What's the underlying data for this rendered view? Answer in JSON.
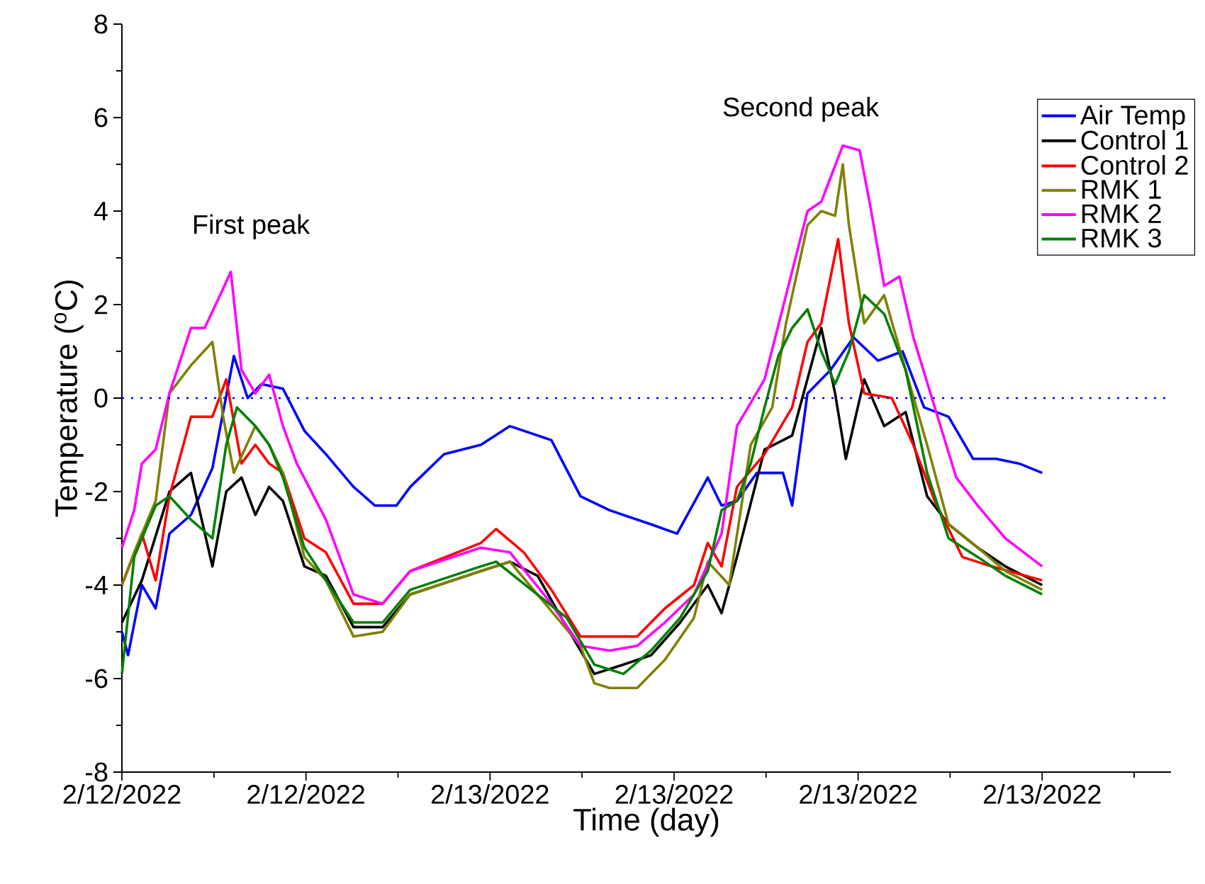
{
  "chart_data": {
    "type": "line",
    "xlabel": "Time (day)",
    "ylabel": "Temperature ($^{o}$C)",
    "xlim": [
      "2022-02-12T12:00",
      "2022-02-13T22:12"
    ],
    "ylim": [
      -8,
      8
    ],
    "xticks": [
      {
        "value": "2022-02-12T12:00",
        "label": "2/12/2022"
      },
      {
        "value": "2022-02-12T15:00",
        "label": null
      },
      {
        "value": "2022-02-12T18:00",
        "label": "2/12/2022"
      },
      {
        "value": "2022-02-12T21:00",
        "label": null
      },
      {
        "value": "2022-02-13T00:00",
        "label": "2/13/2022"
      },
      {
        "value": "2022-02-13T03:00",
        "label": null
      },
      {
        "value": "2022-02-13T06:00",
        "label": "2/13/2022"
      },
      {
        "value": "2022-02-13T09:00",
        "label": null
      },
      {
        "value": "2022-02-13T12:00",
        "label": "2/13/2022"
      },
      {
        "value": "2022-02-13T15:00",
        "label": null
      },
      {
        "value": "2022-02-13T18:00",
        "label": "2/13/2022"
      },
      {
        "value": "2022-02-13T21:00",
        "label": null
      }
    ],
    "yticks": [
      -8,
      {
        "value": -7,
        "label": null
      },
      -6,
      {
        "value": -5,
        "label": null
      },
      -4,
      {
        "value": -3,
        "label": null
      },
      -2,
      {
        "value": -1,
        "label": null
      },
      0,
      {
        "value": 1,
        "label": null
      },
      2,
      {
        "value": 3,
        "label": null
      },
      4,
      {
        "value": 5,
        "label": null
      },
      6,
      {
        "value": 7,
        "label": null
      },
      8
    ],
    "legend": "top right",
    "marker": "none",
    "line_style": "solid",
    "ref_lines": [
      {
        "axis": "y",
        "value": 0,
        "color": "#0000ff",
        "line_style": "dotted"
      }
    ],
    "annotations": [
      "First peak",
      "Second peak"
    ],
    "series": [
      {
        "name": "Air Temp",
        "color": "#0000ff",
        "x": [
          "2022-02-12T12:00",
          "2022-02-12T12:12",
          "2022-02-12T12:39",
          "2022-02-12T13:06",
          "2022-02-12T13:33",
          "2022-02-12T14:15",
          "2022-02-12T14:57",
          "2022-02-12T15:39",
          "2022-02-12T16:06",
          "2022-02-12T16:33",
          "2022-02-12T17:15",
          "2022-02-12T17:57",
          "2022-02-12T18:39",
          "2022-02-12T19:33",
          "2022-02-12T20:15",
          "2022-02-12T20:57",
          "2022-02-12T21:24",
          "2022-02-12T22:30",
          "2022-02-12T23:42",
          "2022-02-13T00:39",
          "2022-02-13T02:00",
          "2022-02-13T02:57",
          "2022-02-13T03:54",
          "2022-02-13T05:15",
          "2022-02-13T06:06",
          "2022-02-13T07:06",
          "2022-02-13T07:33",
          "2022-02-13T08:03",
          "2022-02-13T08:42",
          "2022-02-13T09:33",
          "2022-02-13T09:51",
          "2022-02-13T10:21",
          "2022-02-13T11:06",
          "2022-02-13T11:51",
          "2022-02-13T12:39",
          "2022-02-13T13:27",
          "2022-02-13T14:09",
          "2022-02-13T14:57",
          "2022-02-13T15:45",
          "2022-02-13T16:30",
          "2022-02-13T17:15",
          "2022-02-13T18:00"
        ],
        "values": [
          -5.0,
          -5.5,
          -4.0,
          -4.5,
          -2.9,
          -2.5,
          -1.5,
          0.9,
          0.0,
          0.3,
          0.2,
          -0.7,
          -1.2,
          -1.9,
          -2.3,
          -2.3,
          -1.9,
          -1.2,
          -1.0,
          -0.6,
          -0.9,
          -2.1,
          -2.4,
          -2.7,
          -2.9,
          -1.7,
          -2.3,
          -2.2,
          -1.6,
          -1.6,
          -2.3,
          0.1,
          0.6,
          1.3,
          0.8,
          1.0,
          -0.2,
          -0.4,
          -1.3,
          -1.3,
          -1.4,
          -1.6
        ]
      },
      {
        "name": "Control 1",
        "color": "#000000",
        "x": [
          "2022-02-12T12:00",
          "2022-02-12T12:39",
          "2022-02-12T13:33",
          "2022-02-12T14:15",
          "2022-02-12T14:57",
          "2022-02-12T15:24",
          "2022-02-12T15:54",
          "2022-02-12T16:21",
          "2022-02-12T16:48",
          "2022-02-12T17:15",
          "2022-02-12T17:57",
          "2022-02-12T18:39",
          "2022-02-12T19:33",
          "2022-02-12T20:30",
          "2022-02-12T21:24",
          "2022-02-12T23:42",
          "2022-02-13T00:39",
          "2022-02-13T01:33",
          "2022-02-13T02:30",
          "2022-02-13T03:24",
          "2022-02-13T04:21",
          "2022-02-13T05:15",
          "2022-02-13T06:12",
          "2022-02-13T07:06",
          "2022-02-13T07:33",
          "2022-02-13T08:03",
          "2022-02-13T08:57",
          "2022-02-13T09:51",
          "2022-02-13T10:48",
          "2022-02-13T11:15",
          "2022-02-13T11:36",
          "2022-02-13T12:12",
          "2022-02-13T12:51",
          "2022-02-13T13:33",
          "2022-02-13T14:15",
          "2022-02-13T14:57",
          "2022-02-13T15:54",
          "2022-02-13T16:48",
          "2022-02-13T18:00"
        ],
        "values": [
          -4.8,
          -3.9,
          -2.0,
          -1.6,
          -3.6,
          -2.0,
          -1.7,
          -2.5,
          -1.9,
          -2.2,
          -3.6,
          -3.8,
          -4.9,
          -4.9,
          -4.2,
          -3.7,
          -3.5,
          -3.8,
          -4.9,
          -5.9,
          -5.7,
          -5.5,
          -4.8,
          -4.0,
          -4.6,
          -3.4,
          -1.1,
          -0.8,
          1.5,
          0.1,
          -1.3,
          0.4,
          -0.6,
          -0.3,
          -2.1,
          -2.7,
          -3.2,
          -3.6,
          -4.0
        ]
      },
      {
        "name": "Control 2",
        "color": "#ff0000",
        "x": [
          "2022-02-12T12:00",
          "2022-02-12T12:39",
          "2022-02-12T13:06",
          "2022-02-12T13:33",
          "2022-02-12T14:15",
          "2022-02-12T14:57",
          "2022-02-12T15:24",
          "2022-02-12T15:54",
          "2022-02-12T16:21",
          "2022-02-12T16:48",
          "2022-02-12T17:15",
          "2022-02-12T17:57",
          "2022-02-12T18:39",
          "2022-02-12T19:33",
          "2022-02-12T20:30",
          "2022-02-12T21:24",
          "2022-02-12T23:42",
          "2022-02-13T00:12",
          "2022-02-13T01:06",
          "2022-02-13T02:00",
          "2022-02-13T02:57",
          "2022-02-13T03:54",
          "2022-02-13T04:48",
          "2022-02-13T05:42",
          "2022-02-13T06:39",
          "2022-02-13T07:06",
          "2022-02-13T07:33",
          "2022-02-13T08:03",
          "2022-02-13T08:57",
          "2022-02-13T09:51",
          "2022-02-13T10:21",
          "2022-02-13T10:48",
          "2022-02-13T11:21",
          "2022-02-13T11:42",
          "2022-02-13T12:12",
          "2022-02-13T13:06",
          "2022-02-13T13:48",
          "2022-02-13T14:30",
          "2022-02-13T15:24",
          "2022-02-13T16:21",
          "2022-02-13T18:00"
        ],
        "values": [
          -4.0,
          -2.9,
          -3.9,
          -2.1,
          -0.4,
          -0.4,
          0.4,
          -1.4,
          -1.0,
          -1.4,
          -1.6,
          -3.0,
          -3.3,
          -4.4,
          -4.4,
          -3.7,
          -3.1,
          -2.8,
          -3.3,
          -4.1,
          -5.1,
          -5.1,
          -5.1,
          -4.5,
          -4.0,
          -3.1,
          -3.6,
          -1.9,
          -1.2,
          -0.2,
          1.2,
          1.6,
          3.4,
          1.6,
          0.1,
          0.0,
          -1.0,
          -2.2,
          -3.4,
          -3.6,
          -3.9
        ]
      },
      {
        "name": "RMK 1",
        "color": "#808000",
        "x": [
          "2022-02-12T12:00",
          "2022-02-12T12:24",
          "2022-02-12T13:06",
          "2022-02-12T13:33",
          "2022-02-12T14:15",
          "2022-02-12T14:57",
          "2022-02-12T15:18",
          "2022-02-12T15:39",
          "2022-02-12T16:21",
          "2022-02-12T16:48",
          "2022-02-12T17:15",
          "2022-02-12T17:57",
          "2022-02-12T18:39",
          "2022-02-12T19:33",
          "2022-02-12T20:30",
          "2022-02-12T21:24",
          "2022-02-12T23:42",
          "2022-02-13T00:39",
          "2022-02-13T02:57",
          "2022-02-13T03:24",
          "2022-02-13T03:54",
          "2022-02-13T04:48",
          "2022-02-13T05:42",
          "2022-02-13T06:39",
          "2022-02-13T07:06",
          "2022-02-13T07:48",
          "2022-02-13T08:30",
          "2022-02-13T09:12",
          "2022-02-13T09:39",
          "2022-02-13T10:21",
          "2022-02-13T10:48",
          "2022-02-13T11:15",
          "2022-02-13T11:30",
          "2022-02-13T11:42",
          "2022-02-13T12:12",
          "2022-02-13T12:51",
          "2022-02-13T13:33",
          "2022-02-13T14:15",
          "2022-02-13T14:57",
          "2022-02-13T15:54",
          "2022-02-13T16:48",
          "2022-02-13T18:00"
        ],
        "values": [
          -4.0,
          -3.3,
          -2.2,
          0.1,
          0.7,
          1.2,
          -0.4,
          -1.6,
          -0.6,
          -1.0,
          -1.6,
          -3.4,
          -3.9,
          -5.1,
          -5.0,
          -4.2,
          -3.7,
          -3.5,
          -5.3,
          -6.1,
          -6.2,
          -6.2,
          -5.6,
          -4.7,
          -3.5,
          -4.0,
          -1.0,
          -0.2,
          1.6,
          3.7,
          4.0,
          3.9,
          5.0,
          3.7,
          1.6,
          2.2,
          0.6,
          -1.0,
          -2.7,
          -3.2,
          -3.7,
          -4.1
        ]
      },
      {
        "name": "RMK 2",
        "color": "#ff00ff",
        "x": [
          "2022-02-12T12:00",
          "2022-02-12T12:24",
          "2022-02-12T12:39",
          "2022-02-12T13:06",
          "2022-02-12T13:33",
          "2022-02-12T14:15",
          "2022-02-12T14:42",
          "2022-02-12T15:12",
          "2022-02-12T15:33",
          "2022-02-12T15:54",
          "2022-02-12T16:21",
          "2022-02-12T16:48",
          "2022-02-12T17:15",
          "2022-02-12T17:42",
          "2022-02-12T18:39",
          "2022-02-12T19:33",
          "2022-02-12T20:30",
          "2022-02-12T21:24",
          "2022-02-12T23:42",
          "2022-02-13T00:39",
          "2022-02-13T02:00",
          "2022-02-13T02:57",
          "2022-02-13T03:54",
          "2022-02-13T04:48",
          "2022-02-13T05:42",
          "2022-02-13T06:39",
          "2022-02-13T07:33",
          "2022-02-13T08:03",
          "2022-02-13T08:57",
          "2022-02-13T09:39",
          "2022-02-13T10:21",
          "2022-02-13T10:48",
          "2022-02-13T11:30",
          "2022-02-13T12:03",
          "2022-02-13T12:24",
          "2022-02-13T12:51",
          "2022-02-13T13:21",
          "2022-02-13T13:48",
          "2022-02-13T14:30",
          "2022-02-13T15:12",
          "2022-02-13T15:54",
          "2022-02-13T16:48",
          "2022-02-13T18:00"
        ],
        "values": [
          -3.2,
          -2.4,
          -1.4,
          -1.1,
          0.1,
          1.5,
          1.5,
          2.2,
          2.7,
          0.6,
          0.1,
          0.5,
          -0.6,
          -1.4,
          -2.6,
          -4.2,
          -4.4,
          -3.7,
          -3.2,
          -3.3,
          -4.4,
          -5.3,
          -5.4,
          -5.3,
          -4.8,
          -4.2,
          -2.9,
          -0.6,
          0.4,
          2.2,
          4.0,
          4.2,
          5.4,
          5.3,
          4.1,
          2.4,
          2.6,
          1.3,
          -0.2,
          -1.7,
          -2.3,
          -3.0,
          -3.6
        ]
      },
      {
        "name": "RMK 3",
        "color": "#008000",
        "x": [
          "2022-02-12T12:00",
          "2022-02-12T12:24",
          "2022-02-12T13:06",
          "2022-02-12T13:33",
          "2022-02-12T14:15",
          "2022-02-12T14:57",
          "2022-02-12T15:24",
          "2022-02-12T15:45",
          "2022-02-12T16:21",
          "2022-02-12T16:48",
          "2022-02-12T17:15",
          "2022-02-12T17:57",
          "2022-02-12T18:39",
          "2022-02-12T19:33",
          "2022-02-12T20:30",
          "2022-02-12T21:24",
          "2022-02-12T23:42",
          "2022-02-13T00:12",
          "2022-02-13T02:30",
          "2022-02-13T03:24",
          "2022-02-13T04:21",
          "2022-02-13T05:15",
          "2022-02-13T06:12",
          "2022-02-13T07:06",
          "2022-02-13T07:33",
          "2022-02-13T08:03",
          "2022-02-13T08:30",
          "2022-02-13T08:57",
          "2022-02-13T09:24",
          "2022-02-13T09:51",
          "2022-02-13T10:21",
          "2022-02-13T10:48",
          "2022-02-13T11:15",
          "2022-02-13T11:42",
          "2022-02-13T12:12",
          "2022-02-13T12:51",
          "2022-02-13T13:33",
          "2022-02-13T14:15",
          "2022-02-13T14:57",
          "2022-02-13T15:54",
          "2022-02-13T16:48",
          "2022-02-13T18:00"
        ],
        "values": [
          -5.9,
          -3.4,
          -2.3,
          -2.1,
          -2.6,
          -3.0,
          -1.0,
          -0.2,
          -0.6,
          -1.0,
          -1.7,
          -3.2,
          -3.9,
          -4.8,
          -4.8,
          -4.1,
          -3.6,
          -3.5,
          -4.7,
          -5.7,
          -5.9,
          -5.4,
          -4.7,
          -3.7,
          -2.4,
          -2.2,
          -1.4,
          -0.2,
          0.9,
          1.5,
          1.9,
          1.0,
          0.3,
          1.0,
          2.2,
          1.8,
          0.6,
          -1.6,
          -3.0,
          -3.4,
          -3.8,
          -4.2
        ]
      }
    ]
  }
}
